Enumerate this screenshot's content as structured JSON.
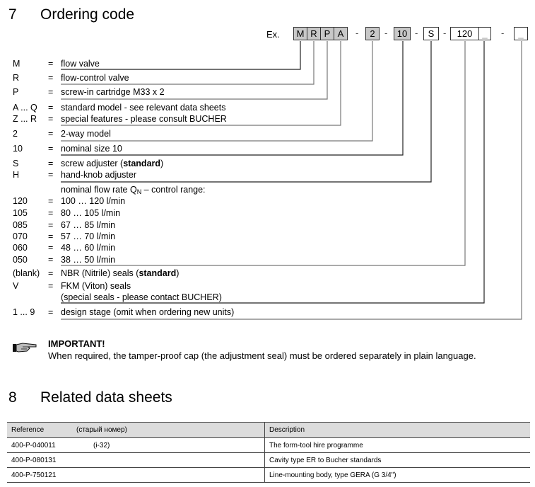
{
  "section7": {
    "number": "7",
    "title": "Ordering code"
  },
  "example": {
    "prefix": "Ex.",
    "boxes": [
      "M",
      "R",
      "P",
      "A",
      "2",
      "10",
      "S",
      "120",
      "_",
      "_"
    ],
    "separator": "-"
  },
  "rows": [
    {
      "code": "M",
      "eq": "=",
      "text": "flow valve"
    },
    {
      "code": "R",
      "eq": "=",
      "text": "flow-control valve"
    },
    {
      "code": "P",
      "eq": "=",
      "text": "screw-in cartridge M33 x 2"
    },
    {
      "code": "A ... Q",
      "eq": "=",
      "text": "standard model - see relevant data sheets"
    },
    {
      "code": "Z ... R",
      "eq": "=",
      "text": "special features - please consult BUCHER"
    },
    {
      "code": "2",
      "eq": "=",
      "text": "2-way model"
    },
    {
      "code": "10",
      "eq": "=",
      "text": "nominal size 10"
    },
    {
      "code": "S",
      "eq": "=",
      "text": "screw adjuster (",
      "bold": "standard",
      "after": ")"
    },
    {
      "code": "H",
      "eq": "=",
      "text": "hand-knob adjuster"
    },
    {
      "code": "",
      "eq": "",
      "text": "nominal flow rate Q",
      "sub": "N",
      "after": " – control range:"
    },
    {
      "code": "120",
      "eq": "=",
      "text": "100 … 120 l/min"
    },
    {
      "code": "105",
      "eq": "=",
      "text": "80 … 105 l/min"
    },
    {
      "code": "085",
      "eq": "=",
      "text": "67 … 85 l/min"
    },
    {
      "code": "070",
      "eq": "=",
      "text": "57 … 70 l/min"
    },
    {
      "code": "060",
      "eq": "=",
      "text": "48 … 60 l/min"
    },
    {
      "code": "050",
      "eq": "=",
      "text": "38 … 50 l/min"
    },
    {
      "code": "(blank)",
      "eq": "=",
      "text": "NBR (Nitrile) seals  (",
      "bold": "standard",
      "after": ")"
    },
    {
      "code": "V",
      "eq": "=",
      "text": "FKM (Viton) seals"
    },
    {
      "code": "",
      "eq": "",
      "text": "(special seals - please contact BUCHER)"
    },
    {
      "code": "1 ... 9",
      "eq": "=",
      "text": "design stage (omit when ordering new units)"
    }
  ],
  "important": {
    "icon": "pointing-hand-icon",
    "title": "IMPORTANT!",
    "text": "When required, the tamper-proof cap (the adjustment seal) must be ordered separately in plain language."
  },
  "section8": {
    "number": "8",
    "title": "Related data sheets"
  },
  "table": {
    "headers": {
      "reference": "Reference",
      "old": "(старый номер)",
      "description": "Description"
    },
    "rows": [
      {
        "reference": "400-P-040011",
        "old": "(i-32)",
        "description": "The form-tool hire programme"
      },
      {
        "reference": "400-P-080131",
        "old": "",
        "description": "Cavity type ER to Bucher standards"
      },
      {
        "reference": "400-P-750121",
        "old": "",
        "description": "Line-mounting body, type GERA (G 3/4\")"
      }
    ]
  }
}
